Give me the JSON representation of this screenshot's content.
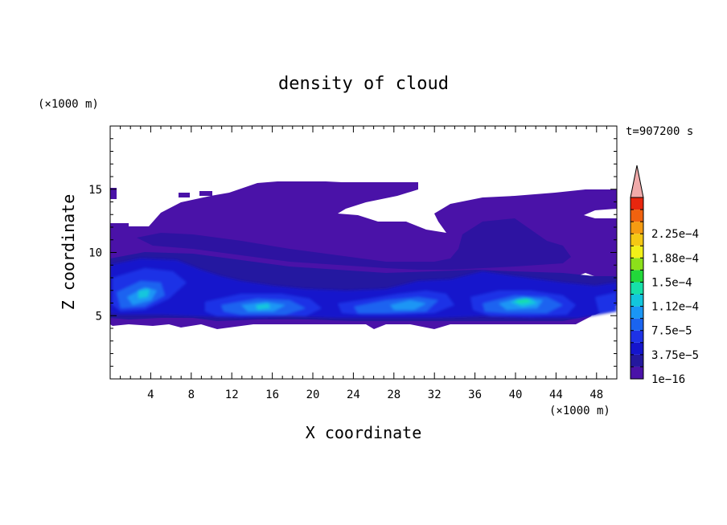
{
  "chart_data": {
    "type": "heatmap",
    "title": "density of cloud",
    "time_label": "t=907200 s",
    "xlabel": "X coordinate",
    "ylabel": "Z coordinate",
    "x_unit": "(×1000 m)",
    "y_unit": "(×1000 m)",
    "xlim": [
      0,
      50
    ],
    "ylim": [
      0,
      20
    ],
    "x_ticks": [
      "4",
      "8",
      "12",
      "16",
      "20",
      "24",
      "28",
      "32",
      "36",
      "40",
      "44",
      "48"
    ],
    "x_tick_values": [
      4,
      8,
      12,
      16,
      20,
      24,
      28,
      32,
      36,
      40,
      44,
      48
    ],
    "y_ticks": [
      "5",
      "10",
      "15"
    ],
    "y_tick_values": [
      5,
      10,
      15
    ],
    "colorbar": {
      "levels": [
        "1e−16",
        "3.75e−5",
        "7.5e−5",
        "1.12e−4",
        "1.5e−4",
        "1.88e−4",
        "2.25e−4"
      ],
      "level_values": [
        1e-16,
        3.75e-05,
        7.5e-05,
        0.000112,
        0.00015,
        0.000188,
        0.000225
      ],
      "colors": [
        "#4a12a8",
        "#24189e",
        "#1515cc",
        "#1e32e6",
        "#1a64f0",
        "#1a96f5",
        "#12c6dc",
        "#16e0a8",
        "#22d83a",
        "#8ce01a",
        "#f2f018",
        "#f5c814",
        "#f59b12",
        "#f0620f",
        "#e8260e",
        "#f0aaaa"
      ],
      "extend": "max"
    },
    "cloud_layer": {
      "base_km": 4.5,
      "top_km": 15.5,
      "max_density_location": [
        39.5,
        6.2
      ]
    }
  }
}
